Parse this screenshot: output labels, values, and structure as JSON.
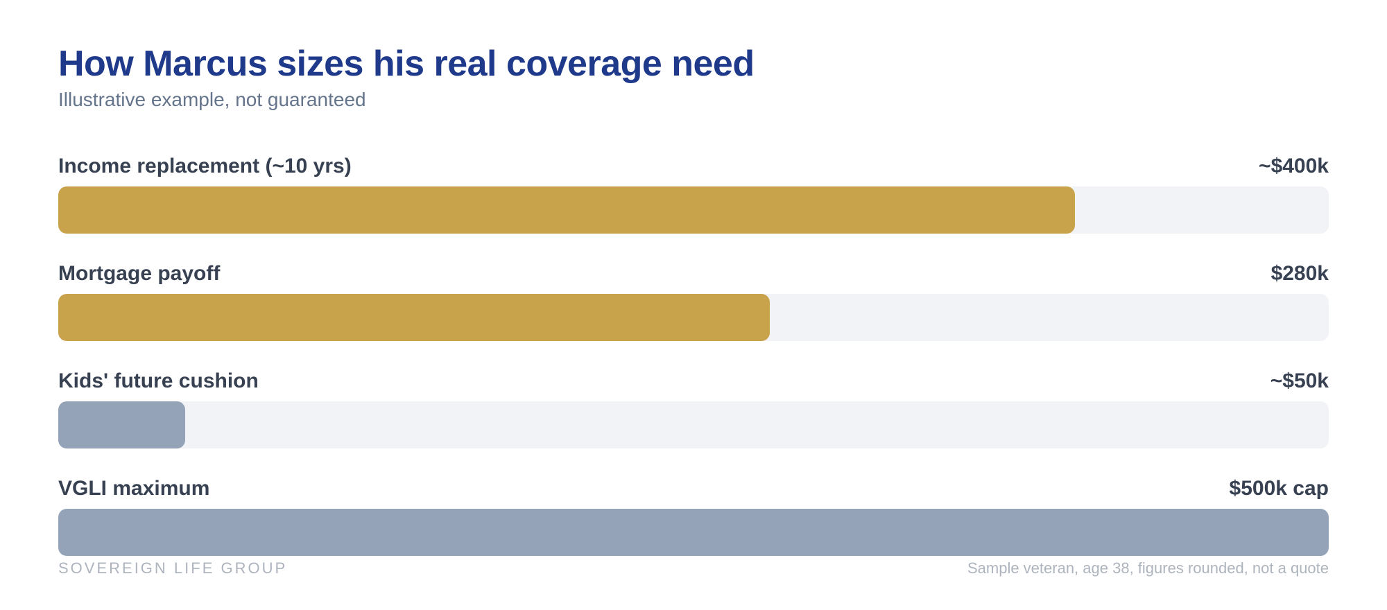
{
  "header": {
    "title": "How Marcus sizes his real coverage need",
    "subtitle": "Illustrative example, not guaranteed"
  },
  "chart_data": {
    "type": "bar",
    "orientation": "horizontal",
    "title": "How Marcus sizes his real coverage need",
    "subtitle": "Illustrative example, not guaranteed",
    "categories": [
      "Income replacement (~10 yrs)",
      "Mortgage payoff",
      "Kids' future cushion",
      "VGLI maximum"
    ],
    "values": [
      400,
      280,
      50,
      500
    ],
    "value_unit": "$k",
    "value_labels": [
      "~$400k",
      "$280k",
      "~$50k",
      "$500k cap"
    ],
    "xlim": [
      0,
      500
    ],
    "colors": [
      "#c9a24c",
      "#c9a24c",
      "#94a3b8",
      "#94a3b8"
    ],
    "track_color": "#f1f3f6",
    "grid": false,
    "legend": "none"
  },
  "footer": {
    "brand": "SOVEREIGN LIFE GROUP",
    "note": "Sample veteran, age 38, figures rounded, not a quote"
  }
}
